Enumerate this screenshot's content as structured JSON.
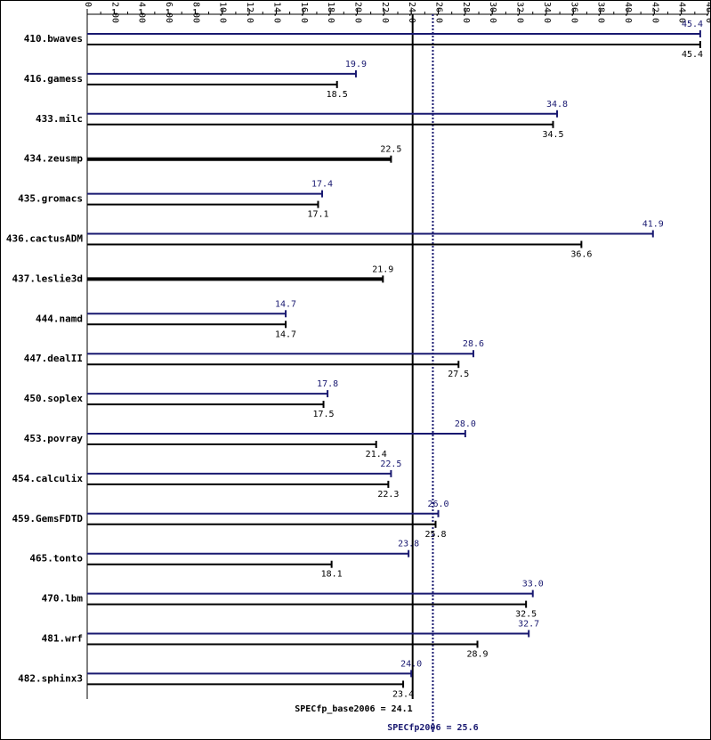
{
  "chart_data": {
    "type": "bar",
    "orientation": "horizontal",
    "categories": [
      "410.bwaves",
      "416.gamess",
      "433.milc",
      "434.zeusmp",
      "435.gromacs",
      "436.cactusADM",
      "437.leslie3d",
      "444.namd",
      "447.dealII",
      "450.soplex",
      "453.povray",
      "454.calculix",
      "459.GemsFDTD",
      "465.tonto",
      "470.lbm",
      "481.wrf",
      "482.sphinx3"
    ],
    "series": [
      {
        "color": "#191970",
        "values": [
          45.4,
          19.9,
          34.8,
          null,
          17.4,
          41.9,
          null,
          14.7,
          28.6,
          17.8,
          28.0,
          22.5,
          26.0,
          23.8,
          33.0,
          32.7,
          24.0
        ],
        "value_labels": [
          "45.4",
          "19.9",
          "34.8",
          null,
          "17.4",
          "41.9",
          null,
          "14.7",
          "28.6",
          "17.8",
          "28.0",
          "22.5",
          "26.0",
          "23.8",
          "33.0",
          "32.7",
          "24.0"
        ]
      },
      {
        "color": "#000000",
        "values": [
          45.4,
          18.5,
          34.5,
          22.5,
          17.1,
          36.6,
          21.9,
          14.7,
          27.5,
          17.5,
          21.4,
          22.3,
          25.8,
          18.1,
          32.5,
          28.9,
          23.4
        ],
        "value_labels": [
          "45.4",
          "18.5",
          "34.5",
          "22.5",
          "17.1",
          "36.6",
          "21.9",
          "14.7",
          "27.5",
          "17.5",
          "21.4",
          "22.3",
          "25.8",
          "18.1",
          "32.5",
          "28.9",
          "23.4"
        ]
      }
    ],
    "xlim": [
      0,
      46
    ],
    "xticks": [
      0,
      {
        "value": 2,
        "label": "2.00"
      },
      {
        "value": 4,
        "label": "4.00"
      },
      {
        "value": 6,
        "label": "6.00"
      },
      {
        "value": 8,
        "label": "8.00"
      },
      {
        "value": 10,
        "label": "10.0"
      },
      {
        "value": 12,
        "label": "12.0"
      },
      {
        "value": 14,
        "label": "14.0"
      },
      {
        "value": 16,
        "label": "16.0"
      },
      {
        "value": 18,
        "label": "18.0"
      },
      {
        "value": 20,
        "label": "20.0"
      },
      {
        "value": 22,
        "label": "22.0"
      },
      {
        "value": 24,
        "label": "24.0"
      },
      {
        "value": 26,
        "label": "26.0"
      },
      {
        "value": 28,
        "label": "28.0"
      },
      {
        "value": 30,
        "label": "30.0"
      },
      {
        "value": 32,
        "label": "32.0"
      },
      {
        "value": 34,
        "label": "34.0"
      },
      {
        "value": 36,
        "label": "36.0"
      },
      {
        "value": 38,
        "label": "38.0"
      },
      {
        "value": 40,
        "label": "40.0"
      },
      {
        "value": 42,
        "label": "42.0"
      },
      {
        "value": 44,
        "label": "44.0"
      },
      {
        "value": 46,
        "label": "46.0"
      }
    ],
    "reference_lines": [
      {
        "value": 24.1,
        "label": "SPECfp_base2006 = 24.1",
        "color": "#000000",
        "style": "solid"
      },
      {
        "value": 25.6,
        "label": "SPECfp2006 = 25.6",
        "color": "#191970",
        "style": "dotted"
      }
    ]
  }
}
